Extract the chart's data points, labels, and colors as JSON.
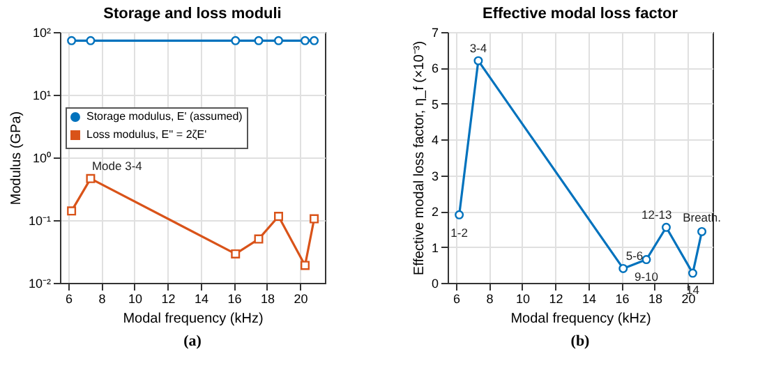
{
  "chart_data": [
    {
      "type": "line",
      "title": "Storage and loss moduli",
      "xlabel": "Modal frequency (kHz)",
      "ylabel": "Modulus (GPa)",
      "x": [
        6.2,
        7.35,
        16.1,
        17.5,
        18.7,
        20.3,
        20.85
      ],
      "series": [
        {
          "name": "Storage modulus, E' (assumed)",
          "color": "#0072bd",
          "marker": "circle",
          "values": [
            73,
            73,
            73,
            73,
            73,
            73,
            73
          ]
        },
        {
          "name": "Loss modulus, E'' = 2ζE'",
          "color": "#d95319",
          "marker": "square",
          "values": [
            0.14,
            0.46,
            0.029,
            0.05,
            0.115,
            0.019,
            0.105
          ]
        }
      ],
      "log": "y",
      "xlim": [
        5.5,
        21.5
      ],
      "xticks": [
        6,
        8,
        10,
        12,
        14,
        16,
        18,
        20
      ],
      "ylim": [
        0.01,
        100
      ],
      "yticks": [
        {
          "value": 0.01,
          "label": "10⁻²"
        },
        {
          "value": 0.1,
          "label": "10⁻¹"
        },
        {
          "value": 1,
          "label": "10⁰"
        },
        {
          "value": 10,
          "label": "10¹"
        },
        {
          "value": 100,
          "label": "10²"
        }
      ],
      "grid": true,
      "legend": "left",
      "line_style": "solid",
      "annotations": [
        {
          "text": "Mode 3-4",
          "x": 7.35,
          "y": 0.46
        },
        "(a)"
      ]
    },
    {
      "type": "line",
      "title": "Effective modal loss factor",
      "xlabel": "Modal frequency (kHz)",
      "ylabel": "Effective modal loss factor, η_f (×10⁻³)",
      "x": [
        6.2,
        7.35,
        16.1,
        17.5,
        18.7,
        20.3,
        20.85
      ],
      "series": [
        {
          "color": "#0072bd",
          "marker": "circle",
          "values": [
            1.9,
            6.2,
            0.4,
            0.65,
            1.55,
            0.27,
            1.43
          ]
        }
      ],
      "xlim": [
        5.5,
        21.5
      ],
      "xticks": [
        6,
        8,
        10,
        12,
        14,
        16,
        18,
        20
      ],
      "ylim": [
        0,
        7
      ],
      "yticks": [
        0,
        1,
        2,
        3,
        4,
        5,
        6,
        7
      ],
      "grid": true,
      "line_style": "solid",
      "annotations": [
        {
          "text": "1-2",
          "x": 6.2,
          "y": 1.9
        },
        {
          "text": "3-4",
          "x": 7.35,
          "y": 6.2
        },
        {
          "text": "5-6",
          "x": 16.1,
          "y": 0.4
        },
        {
          "text": "9-10",
          "x": 17.5,
          "y": 0.65
        },
        {
          "text": "12-13",
          "x": 18.7,
          "y": 1.55
        },
        {
          "text": "14",
          "x": 20.3,
          "y": 0.27
        },
        {
          "text": "Breath.",
          "x": 20.85,
          "y": 1.43
        },
        "(b)"
      ]
    }
  ]
}
